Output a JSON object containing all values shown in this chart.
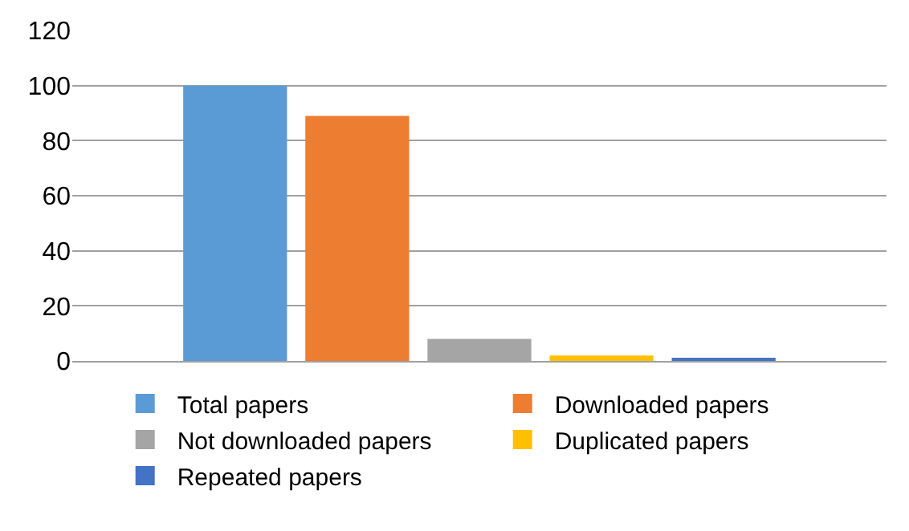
{
  "chart_data": {
    "type": "bar",
    "categories": [
      null
    ],
    "series": [
      {
        "name": "Total papers",
        "color": "#5b9bd5",
        "values": [
          100
        ]
      },
      {
        "name": "Downloaded papers",
        "color": "#ed7d31",
        "values": [
          89
        ]
      },
      {
        "name": "Not downloaded papers",
        "color": "#a5a5a5",
        "values": [
          8
        ]
      },
      {
        "name": "Duplicated papers",
        "color": "#ffc000",
        "values": [
          2
        ]
      },
      {
        "name": "Repeated papers",
        "color": "#4472c4",
        "values": [
          1
        ]
      }
    ],
    "ylim": [
      0,
      120
    ],
    "yticks": [
      0,
      20,
      40,
      60,
      80,
      100,
      120
    ],
    "grid": "y",
    "legend": "bottom"
  }
}
